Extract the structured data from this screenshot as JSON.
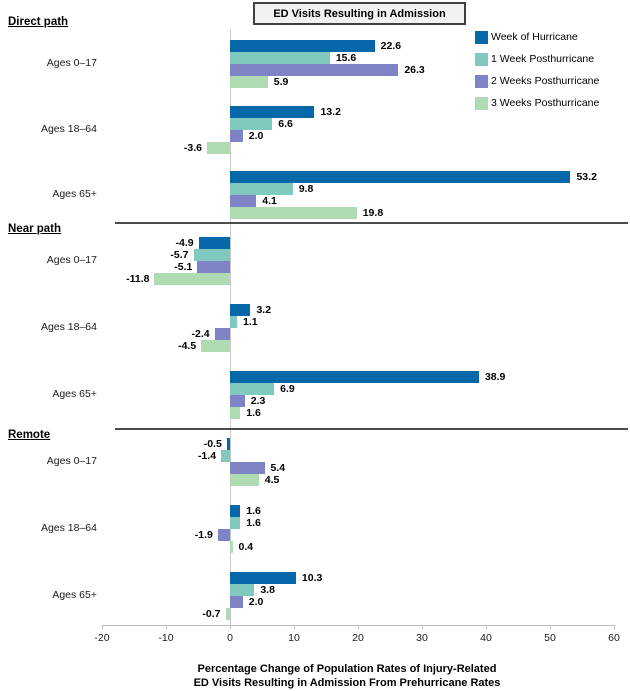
{
  "title": "ED Visits Resulting in Admission",
  "legend": [
    {
      "label": "Week of Hurricane",
      "color": "#0768a9",
      "name": "week-of-hurricane"
    },
    {
      "label": "1 Week Posthurricane",
      "color": "#7fc9be",
      "name": "1-week-posthurricane"
    },
    {
      "label": "2 Weeks Posthurricane",
      "color": "#7d83c4",
      "name": "2-weeks-posthurricane"
    },
    {
      "label": "3 Weeks Posthurricane",
      "color": "#aedbb1",
      "name": "3-weeks-posthurricane"
    }
  ],
  "x_axis_title_line1": "Percentage Change of Population Rates of Injury-Related",
  "x_axis_title_line2": "ED Visits Resulting in Admission From Prehurricane Rates",
  "chart_data": {
    "type": "bar",
    "orientation": "horizontal",
    "title": "ED Visits Resulting in Admission",
    "xlabel": "Percentage Change of Population Rates of Injury-Related ED Visits Resulting in Admission From Prehurricane Rates",
    "ylabel": "",
    "xlim": [
      -20,
      60
    ],
    "xticks": [
      -20,
      -10,
      0,
      10,
      20,
      30,
      40,
      50,
      60
    ],
    "grid": "zero-line-only",
    "legend_position": "top-right",
    "series_names": [
      "Week of Hurricane",
      "1 Week Posthurricane",
      "2 Weeks Posthurricane",
      "3 Weeks Posthurricane"
    ],
    "sections": [
      {
        "label": "Direct path",
        "groups": [
          {
            "category": "Ages 0–17",
            "values": [
              22.6,
              15.6,
              26.3,
              5.9
            ]
          },
          {
            "category": "Ages 18–64",
            "values": [
              13.2,
              6.6,
              2.0,
              -3.6
            ]
          },
          {
            "category": "Ages 65+",
            "values": [
              53.2,
              9.8,
              4.1,
              19.8
            ]
          }
        ]
      },
      {
        "label": "Near path",
        "groups": [
          {
            "category": "Ages 0–17",
            "values": [
              -4.9,
              -5.7,
              -5.1,
              -11.8
            ]
          },
          {
            "category": "Ages 18–64",
            "values": [
              3.2,
              1.1,
              -2.4,
              -4.5
            ]
          },
          {
            "category": "Ages 65+",
            "values": [
              38.9,
              6.9,
              2.3,
              1.6
            ]
          }
        ]
      },
      {
        "label": "Remote",
        "groups": [
          {
            "category": "Ages 0–17",
            "values": [
              -0.5,
              -1.4,
              5.4,
              4.5
            ]
          },
          {
            "category": "Ages 18–64",
            "values": [
              1.6,
              1.6,
              -1.9,
              0.4
            ]
          },
          {
            "category": "Ages 65+",
            "values": [
              10.3,
              3.8,
              2.0,
              -0.7
            ]
          }
        ]
      }
    ]
  }
}
